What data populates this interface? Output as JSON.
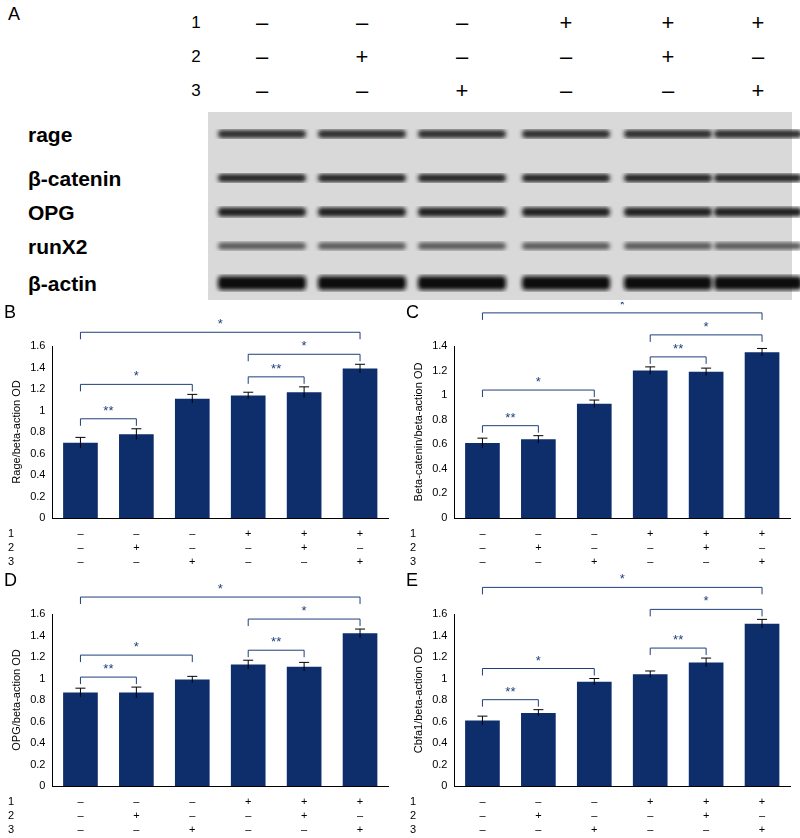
{
  "panel_a": {
    "panel": "A",
    "treatments": [
      {
        "name": "1",
        "marks": [
          "–",
          "–",
          "–",
          "+",
          "+",
          "+"
        ]
      },
      {
        "name": "2",
        "marks": [
          "–",
          "+",
          "–",
          "–",
          "+",
          "–"
        ]
      },
      {
        "name": "3",
        "marks": [
          "–",
          "–",
          "+",
          "–",
          "–",
          "+"
        ]
      }
    ],
    "rows": [
      "rage",
      "β-catenin",
      "OPG",
      "runX2",
      "β-actin"
    ]
  },
  "chart_data": [
    {
      "panel": "B",
      "type": "bar",
      "y_label": "Rage/beta-action OD",
      "categories": [
        null,
        null,
        null,
        null,
        null,
        null
      ],
      "values": [
        0.7,
        0.78,
        1.11,
        1.14,
        1.17,
        1.39
      ],
      "errors": [
        0.05,
        0.05,
        0.04,
        0.03,
        0.05,
        0.04
      ],
      "color": "#0d2d6b",
      "ylim": [
        0,
        1.6
      ],
      "yticks": [
        0,
        0.2,
        0.4,
        0.6,
        0.8,
        1,
        1.2,
        1.4,
        1.6
      ],
      "grid": false,
      "tick_labels": "y",
      "conditions": [
        {
          "name": "1",
          "marks": [
            "–",
            "–",
            "–",
            "+",
            "+",
            "+"
          ]
        },
        {
          "name": "2",
          "marks": [
            "–",
            "+",
            "–",
            "–",
            "+",
            "–"
          ]
        },
        {
          "name": "3",
          "marks": [
            "–",
            "–",
            "+",
            "–",
            "–",
            "+"
          ]
        }
      ],
      "brackets": [
        {
          "from": 0,
          "to": 1,
          "label": "**"
        },
        {
          "from": 3,
          "to": 4,
          "label": "**"
        },
        {
          "from": 0,
          "to": 2,
          "label": "*"
        },
        {
          "from": 3,
          "to": 5,
          "label": "*"
        },
        {
          "from": 0,
          "to": 5,
          "label": "*"
        }
      ]
    },
    {
      "panel": "C",
      "type": "bar",
      "y_label": "Beta-catenin/beta-action OD",
      "categories": [
        null,
        null,
        null,
        null,
        null,
        null
      ],
      "values": [
        0.61,
        0.64,
        0.93,
        1.2,
        1.19,
        1.35
      ],
      "errors": [
        0.04,
        0.03,
        0.03,
        0.03,
        0.03,
        0.03
      ],
      "color": "#0d2d6b",
      "ylim": [
        0,
        1.4
      ],
      "yticks": [
        0,
        0.2,
        0.4,
        0.6,
        0.8,
        1,
        1.2,
        1.4
      ],
      "grid": false,
      "tick_labels": "y",
      "conditions": [
        {
          "name": "1",
          "marks": [
            "–",
            "–",
            "–",
            "+",
            "+",
            "+"
          ]
        },
        {
          "name": "2",
          "marks": [
            "–",
            "+",
            "–",
            "–",
            "+",
            "–"
          ]
        },
        {
          "name": "3",
          "marks": [
            "–",
            "–",
            "+",
            "–",
            "–",
            "+"
          ]
        }
      ],
      "brackets": [
        {
          "from": 0,
          "to": 1,
          "label": "**"
        },
        {
          "from": 3,
          "to": 4,
          "label": "**"
        },
        {
          "from": 0,
          "to": 2,
          "label": "*"
        },
        {
          "from": 3,
          "to": 5,
          "label": "*"
        },
        {
          "from": 0,
          "to": 5,
          "label": "*"
        }
      ]
    },
    {
      "panel": "D",
      "type": "bar",
      "y_label": "OPG/beta-action OD",
      "categories": [
        null,
        null,
        null,
        null,
        null,
        null
      ],
      "values": [
        0.87,
        0.87,
        0.99,
        1.13,
        1.11,
        1.42
      ],
      "errors": [
        0.04,
        0.05,
        0.03,
        0.04,
        0.04,
        0.04
      ],
      "color": "#0d2d6b",
      "ylim": [
        0,
        1.6
      ],
      "yticks": [
        0,
        0.2,
        0.4,
        0.6,
        0.8,
        1,
        1.2,
        1.4,
        1.6
      ],
      "grid": false,
      "tick_labels": "y",
      "conditions": [
        {
          "name": "1",
          "marks": [
            "–",
            "–",
            "–",
            "+",
            "+",
            "+"
          ]
        },
        {
          "name": "2",
          "marks": [
            "–",
            "+",
            "–",
            "–",
            "+",
            "–"
          ]
        },
        {
          "name": "3",
          "marks": [
            "–",
            "–",
            "+",
            "–",
            "–",
            "+"
          ]
        }
      ],
      "brackets": [
        {
          "from": 0,
          "to": 1,
          "label": "**"
        },
        {
          "from": 3,
          "to": 4,
          "label": "**"
        },
        {
          "from": 0,
          "to": 2,
          "label": "*"
        },
        {
          "from": 3,
          "to": 5,
          "label": "*"
        },
        {
          "from": 0,
          "to": 5,
          "label": "*"
        }
      ]
    },
    {
      "panel": "E",
      "type": "bar",
      "y_label": "Cbfa1/beta-action OD",
      "categories": [
        null,
        null,
        null,
        null,
        null,
        null
      ],
      "values": [
        0.61,
        0.68,
        0.97,
        1.04,
        1.15,
        1.51
      ],
      "errors": [
        0.04,
        0.03,
        0.03,
        0.03,
        0.04,
        0.04
      ],
      "color": "#0d2d6b",
      "ylim": [
        0,
        1.6
      ],
      "yticks": [
        0,
        0.2,
        0.4,
        0.6,
        0.8,
        1,
        1.2,
        1.4,
        1.6
      ],
      "grid": false,
      "tick_labels": "y",
      "conditions": [
        {
          "name": "1",
          "marks": [
            "–",
            "–",
            "–",
            "+",
            "+",
            "+"
          ]
        },
        {
          "name": "2",
          "marks": [
            "–",
            "+",
            "–",
            "–",
            "+",
            "–"
          ]
        },
        {
          "name": "3",
          "marks": [
            "–",
            "–",
            "+",
            "–",
            "–",
            "+"
          ]
        }
      ],
      "brackets": [
        {
          "from": 0,
          "to": 1,
          "label": "**"
        },
        {
          "from": 3,
          "to": 4,
          "label": "**"
        },
        {
          "from": 0,
          "to": 2,
          "label": "*"
        },
        {
          "from": 3,
          "to": 5,
          "label": "*"
        },
        {
          "from": 0,
          "to": 5,
          "label": "*"
        }
      ]
    }
  ]
}
